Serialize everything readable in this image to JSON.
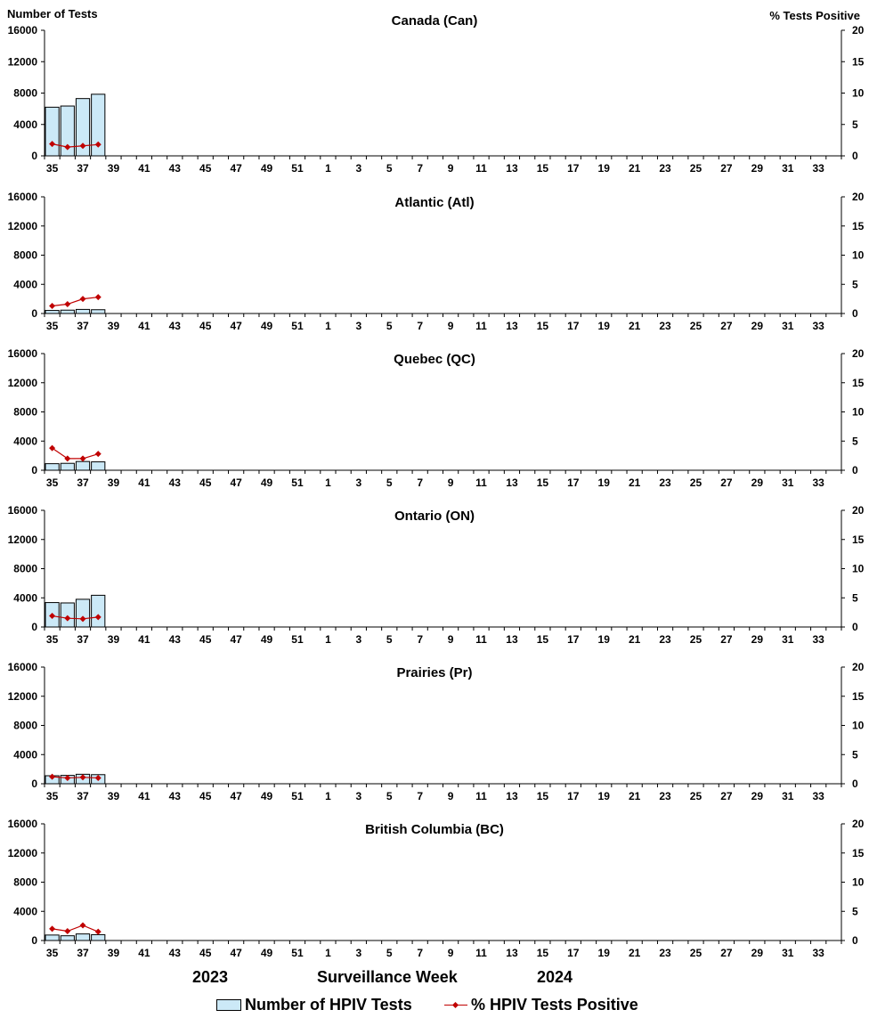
{
  "left_axis_title": "Number of Tests",
  "right_axis_title": "%  Tests Positive",
  "x_axis_label": "Surveillance Week",
  "season_start_year": "2023",
  "season_end_year": "2024",
  "legend": {
    "bars_label": "Number of HPIV Tests",
    "line_label": "% HPIV Tests Positive"
  },
  "colors": {
    "bar_fill": "#cce9f7",
    "bar_stroke": "#000000",
    "line": "#c00000",
    "axis": "#000000"
  },
  "chart_data": [
    {
      "type": "bar",
      "title": "Canada (Can)",
      "weeks": [
        35,
        36,
        37,
        38,
        39,
        40,
        41,
        42,
        43,
        44,
        45,
        46,
        47,
        48,
        49,
        50,
        51,
        52,
        1,
        2,
        3,
        4,
        5,
        6,
        7,
        8,
        9,
        10,
        11,
        12,
        13,
        14,
        15,
        16,
        17,
        18,
        19,
        20,
        21,
        22,
        23,
        24,
        25,
        26,
        27,
        28,
        29,
        30,
        31,
        32,
        33,
        34
      ],
      "tick_labels": [
        "35",
        "37",
        "39",
        "41",
        "43",
        "45",
        "47",
        "49",
        "51",
        "1",
        "3",
        "5",
        "7",
        "9",
        "11",
        "13",
        "15",
        "17",
        "19",
        "21",
        "23",
        "25",
        "27",
        "29",
        "31",
        "33"
      ],
      "left_ylim": [
        0,
        16000
      ],
      "left_ticks": [
        0,
        4000,
        8000,
        12000,
        16000
      ],
      "right_ylim": [
        0,
        20
      ],
      "right_ticks": [
        0,
        5,
        10,
        15,
        20
      ],
      "series": [
        {
          "name": "Number of HPIV Tests",
          "type": "bar",
          "axis": "left",
          "values": [
            6200,
            6350,
            7300,
            7850
          ]
        },
        {
          "name": "% HPIV Tests Positive",
          "type": "line",
          "axis": "right",
          "values": [
            1.9,
            1.4,
            1.6,
            1.8
          ]
        }
      ]
    },
    {
      "type": "bar",
      "title": "Atlantic (Atl)",
      "weeks": [
        35,
        36,
        37,
        38,
        39,
        40,
        41,
        42,
        43,
        44,
        45,
        46,
        47,
        48,
        49,
        50,
        51,
        52,
        1,
        2,
        3,
        4,
        5,
        6,
        7,
        8,
        9,
        10,
        11,
        12,
        13,
        14,
        15,
        16,
        17,
        18,
        19,
        20,
        21,
        22,
        23,
        24,
        25,
        26,
        27,
        28,
        29,
        30,
        31,
        32,
        33,
        34
      ],
      "tick_labels": [
        "35",
        "37",
        "39",
        "41",
        "43",
        "45",
        "47",
        "49",
        "51",
        "1",
        "3",
        "5",
        "7",
        "9",
        "11",
        "13",
        "15",
        "17",
        "19",
        "21",
        "23",
        "25",
        "27",
        "29",
        "31",
        "33"
      ],
      "left_ylim": [
        0,
        16000
      ],
      "left_ticks": [
        0,
        4000,
        8000,
        12000,
        16000
      ],
      "right_ylim": [
        0,
        20
      ],
      "right_ticks": [
        0,
        5,
        10,
        15,
        20
      ],
      "series": [
        {
          "name": "Number of HPIV Tests",
          "type": "bar",
          "axis": "left",
          "values": [
            420,
            460,
            560,
            520
          ]
        },
        {
          "name": "% HPIV Tests Positive",
          "type": "line",
          "axis": "right",
          "values": [
            1.3,
            1.6,
            2.5,
            2.8
          ]
        }
      ]
    },
    {
      "type": "bar",
      "title": "Quebec (QC)",
      "weeks": [
        35,
        36,
        37,
        38,
        39,
        40,
        41,
        42,
        43,
        44,
        45,
        46,
        47,
        48,
        49,
        50,
        51,
        52,
        1,
        2,
        3,
        4,
        5,
        6,
        7,
        8,
        9,
        10,
        11,
        12,
        13,
        14,
        15,
        16,
        17,
        18,
        19,
        20,
        21,
        22,
        23,
        24,
        25,
        26,
        27,
        28,
        29,
        30,
        31,
        32,
        33,
        34
      ],
      "tick_labels": [
        "35",
        "37",
        "39",
        "41",
        "43",
        "45",
        "47",
        "49",
        "51",
        "1",
        "3",
        "5",
        "7",
        "9",
        "11",
        "13",
        "15",
        "17",
        "19",
        "21",
        "23",
        "25",
        "27",
        "29",
        "31",
        "33"
      ],
      "left_ylim": [
        0,
        16000
      ],
      "left_ticks": [
        0,
        4000,
        8000,
        12000,
        16000
      ],
      "right_ylim": [
        0,
        20
      ],
      "right_ticks": [
        0,
        5,
        10,
        15,
        20
      ],
      "series": [
        {
          "name": "Number of HPIV Tests",
          "type": "bar",
          "axis": "left",
          "values": [
            900,
            950,
            1200,
            1150
          ]
        },
        {
          "name": "% HPIV Tests Positive",
          "type": "line",
          "axis": "right",
          "values": [
            3.8,
            2.0,
            2.0,
            2.8
          ]
        }
      ]
    },
    {
      "type": "bar",
      "title": "Ontario (ON)",
      "weeks": [
        35,
        36,
        37,
        38,
        39,
        40,
        41,
        42,
        43,
        44,
        45,
        46,
        47,
        48,
        49,
        50,
        51,
        52,
        1,
        2,
        3,
        4,
        5,
        6,
        7,
        8,
        9,
        10,
        11,
        12,
        13,
        14,
        15,
        16,
        17,
        18,
        19,
        20,
        21,
        22,
        23,
        24,
        25,
        26,
        27,
        28,
        29,
        30,
        31,
        32,
        33,
        34
      ],
      "tick_labels": [
        "35",
        "37",
        "39",
        "41",
        "43",
        "45",
        "47",
        "49",
        "51",
        "1",
        "3",
        "5",
        "7",
        "9",
        "11",
        "13",
        "15",
        "17",
        "19",
        "21",
        "23",
        "25",
        "27",
        "29",
        "31",
        "33"
      ],
      "left_ylim": [
        0,
        16000
      ],
      "left_ticks": [
        0,
        4000,
        8000,
        12000,
        16000
      ],
      "right_ylim": [
        0,
        20
      ],
      "right_ticks": [
        0,
        5,
        10,
        15,
        20
      ],
      "series": [
        {
          "name": "Number of HPIV Tests",
          "type": "bar",
          "axis": "left",
          "values": [
            3350,
            3300,
            3800,
            4350
          ]
        },
        {
          "name": "% HPIV Tests Positive",
          "type": "line",
          "axis": "right",
          "values": [
            1.9,
            1.5,
            1.4,
            1.7
          ]
        }
      ]
    },
    {
      "type": "bar",
      "title": "Prairies (Pr)",
      "weeks": [
        35,
        36,
        37,
        38,
        39,
        40,
        41,
        42,
        43,
        44,
        45,
        46,
        47,
        48,
        49,
        50,
        51,
        52,
        1,
        2,
        3,
        4,
        5,
        6,
        7,
        8,
        9,
        10,
        11,
        12,
        13,
        14,
        15,
        16,
        17,
        18,
        19,
        20,
        21,
        22,
        23,
        24,
        25,
        26,
        27,
        28,
        29,
        30,
        31,
        32,
        33,
        34
      ],
      "tick_labels": [
        "35",
        "37",
        "39",
        "41",
        "43",
        "45",
        "47",
        "49",
        "51",
        "1",
        "3",
        "5",
        "7",
        "9",
        "11",
        "13",
        "15",
        "17",
        "19",
        "21",
        "23",
        "25",
        "27",
        "29",
        "31",
        "33"
      ],
      "left_ylim": [
        0,
        16000
      ],
      "left_ticks": [
        0,
        4000,
        8000,
        12000,
        16000
      ],
      "right_ylim": [
        0,
        20
      ],
      "right_ticks": [
        0,
        5,
        10,
        15,
        20
      ],
      "series": [
        {
          "name": "Number of HPIV Tests",
          "type": "bar",
          "axis": "left",
          "values": [
            1100,
            1150,
            1300,
            1250
          ]
        },
        {
          "name": "% HPIV Tests Positive",
          "type": "line",
          "axis": "right",
          "values": [
            1.2,
            1.0,
            1.1,
            1.0
          ]
        }
      ]
    },
    {
      "type": "bar",
      "title": "British Columbia (BC)",
      "weeks": [
        35,
        36,
        37,
        38,
        39,
        40,
        41,
        42,
        43,
        44,
        45,
        46,
        47,
        48,
        49,
        50,
        51,
        52,
        1,
        2,
        3,
        4,
        5,
        6,
        7,
        8,
        9,
        10,
        11,
        12,
        13,
        14,
        15,
        16,
        17,
        18,
        19,
        20,
        21,
        22,
        23,
        24,
        25,
        26,
        27,
        28,
        29,
        30,
        31,
        32,
        33,
        34
      ],
      "tick_labels": [
        "35",
        "37",
        "39",
        "41",
        "43",
        "45",
        "47",
        "49",
        "51",
        "1",
        "3",
        "5",
        "7",
        "9",
        "11",
        "13",
        "15",
        "17",
        "19",
        "21",
        "23",
        "25",
        "27",
        "29",
        "31",
        "33"
      ],
      "left_ylim": [
        0,
        16000
      ],
      "left_ticks": [
        0,
        4000,
        8000,
        12000,
        16000
      ],
      "right_ylim": [
        0,
        20
      ],
      "right_ticks": [
        0,
        5,
        10,
        15,
        20
      ],
      "series": [
        {
          "name": "Number of HPIV Tests",
          "type": "bar",
          "axis": "left",
          "values": [
            750,
            650,
            900,
            800
          ]
        },
        {
          "name": "% HPIV Tests Positive",
          "type": "line",
          "axis": "right",
          "values": [
            2.0,
            1.6,
            2.6,
            1.5
          ]
        }
      ]
    }
  ]
}
